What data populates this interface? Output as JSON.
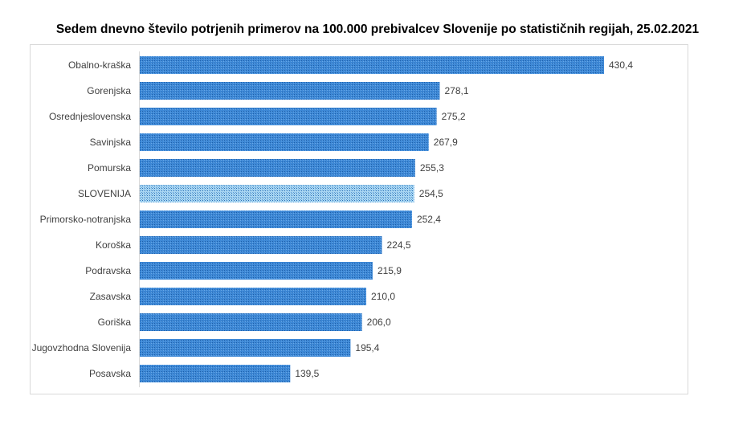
{
  "chart_data": {
    "type": "bar",
    "orientation": "horizontal",
    "title": "Sedem dnevno število potrjenih primerov na 100.000 prebivalcev Slovenije po statističnih regijah, 25.02.2021",
    "categories": [
      "Obalno-kraška",
      "Gorenjska",
      "Osrednjeslovenska",
      "Savinjska",
      "Pomurska",
      "SLOVENIJA",
      "Primorsko-notranjska",
      "Koroška",
      "Podravska",
      "Zasavska",
      "Goriška",
      "Jugovzhodna Slovenija",
      "Posavska"
    ],
    "values": [
      430.4,
      278.1,
      275.2,
      267.9,
      255.3,
      254.5,
      252.4,
      224.5,
      215.9,
      210.0,
      206.0,
      195.4,
      139.5
    ],
    "data_labels": [
      "430,4",
      "278,1",
      "275,2",
      "267,9",
      "255,3",
      "254,5",
      "252,4",
      "224,5",
      "215,9",
      "210,0",
      "206,0",
      "195,4",
      "139,5"
    ],
    "highlight_category": "SLOVENIJA",
    "xlim": [
      0,
      430.4
    ],
    "grid": false,
    "legend": "none",
    "colors": {
      "bar": "#3d88d6",
      "bar_dots": "#1f5fa8",
      "highlight": "#a9d6f2",
      "highlight_dots": "#2a6fb5"
    }
  }
}
